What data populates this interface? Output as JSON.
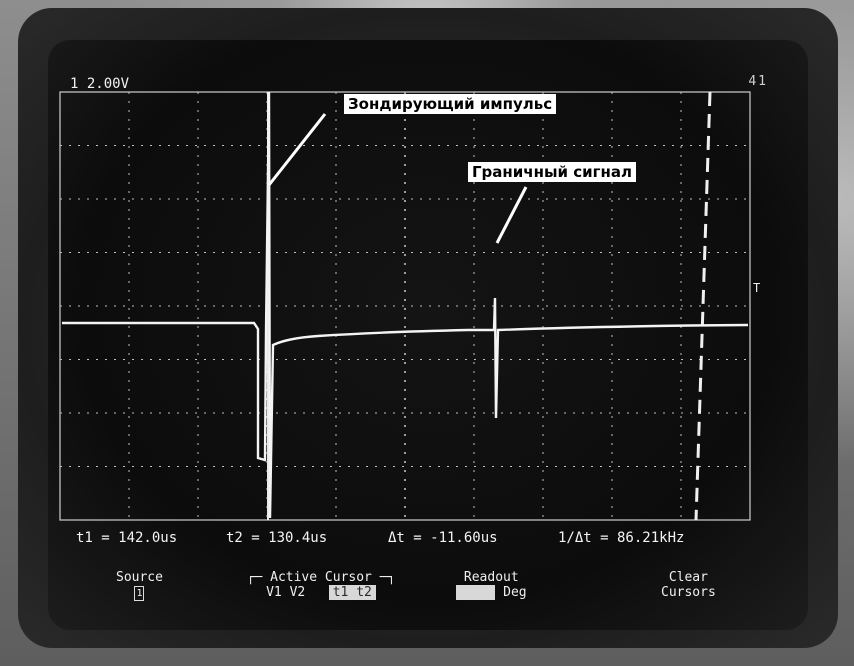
{
  "scope": {
    "channel_scale": "1 2.00V",
    "top_right": "41"
  },
  "annotations": {
    "probe_pulse": "Зондирующий импульс",
    "boundary_signal": "Граничный сигнал"
  },
  "readouts": {
    "t1": "t1 = 142.0us",
    "t2": "t2 = 130.4us",
    "dt": "Δt = -11.60us",
    "inv_dt": "1/Δt = 86.21kHz"
  },
  "softkeys": {
    "source_label": "Source",
    "source_value": "1",
    "active_cursor_label": "Active Cursor",
    "active_cursor_options": "V1  V2",
    "active_cursor_selected": "t1  t2",
    "readout_label": "Readout",
    "readout_option": "Deg",
    "clear_label_1": "Clear",
    "clear_label_2": "Cursors"
  },
  "colors": {
    "trace": "#f4f4f4",
    "grid": "#d0d0d0",
    "label_bg": "#ffffff"
  }
}
